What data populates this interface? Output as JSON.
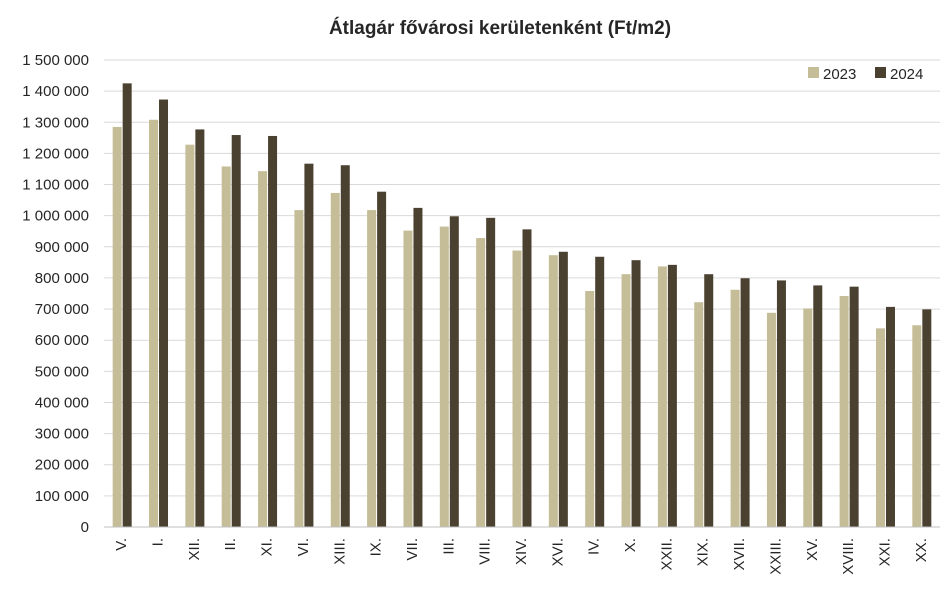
{
  "chart_data": {
    "type": "bar",
    "title": "Átlagár fővárosi kerületenként (Ft/m2)",
    "categories": [
      "V.",
      "I.",
      "XII.",
      "II.",
      "XI.",
      "VI.",
      "XIII.",
      "IX.",
      "VII.",
      "III.",
      "VIII.",
      "XIV.",
      "XVI.",
      "IV.",
      "X.",
      "XXII.",
      "XIX.",
      "XVII.",
      "XXIII.",
      "XV.",
      "XVIII.",
      "XXI.",
      "XX."
    ],
    "series": [
      {
        "name": "2023",
        "color": "#c4bd97",
        "values": [
          1285000,
          1308000,
          1228000,
          1158000,
          1143000,
          1018000,
          1073000,
          1018000,
          952000,
          965000,
          928000,
          888000,
          873000,
          758000,
          812000,
          837000,
          722000,
          762000,
          688000,
          702000,
          742000,
          638000,
          648000
        ]
      },
      {
        "name": "2024",
        "color": "#4a4130",
        "values": [
          1425000,
          1373000,
          1277000,
          1259000,
          1256000,
          1167000,
          1162000,
          1077000,
          1025000,
          998000,
          993000,
          956000,
          884000,
          868000,
          857000,
          842000,
          812000,
          799000,
          792000,
          776000,
          772000,
          707000,
          699000
        ]
      }
    ],
    "ylim": [
      0,
      1500000
    ],
    "yticks": [
      {
        "value": 0,
        "label": "0"
      },
      {
        "value": 100000,
        "label": "100 000"
      },
      {
        "value": 200000,
        "label": "200 000"
      },
      {
        "value": 300000,
        "label": "300 000"
      },
      {
        "value": 400000,
        "label": "400 000"
      },
      {
        "value": 500000,
        "label": "500 000"
      },
      {
        "value": 600000,
        "label": "600 000"
      },
      {
        "value": 700000,
        "label": "700 000"
      },
      {
        "value": 800000,
        "label": "800 000"
      },
      {
        "value": 900000,
        "label": "900 000"
      },
      {
        "value": 1000000,
        "label": "1 000 000"
      },
      {
        "value": 1100000,
        "label": "1 100 000"
      },
      {
        "value": 1200000,
        "label": "1 200 000"
      },
      {
        "value": 1300000,
        "label": "1 300 000"
      },
      {
        "value": 1400000,
        "label": "1 400 000"
      },
      {
        "value": 1500000,
        "label": "1 500 000"
      }
    ],
    "grid": true,
    "legend_position": "top-right"
  }
}
